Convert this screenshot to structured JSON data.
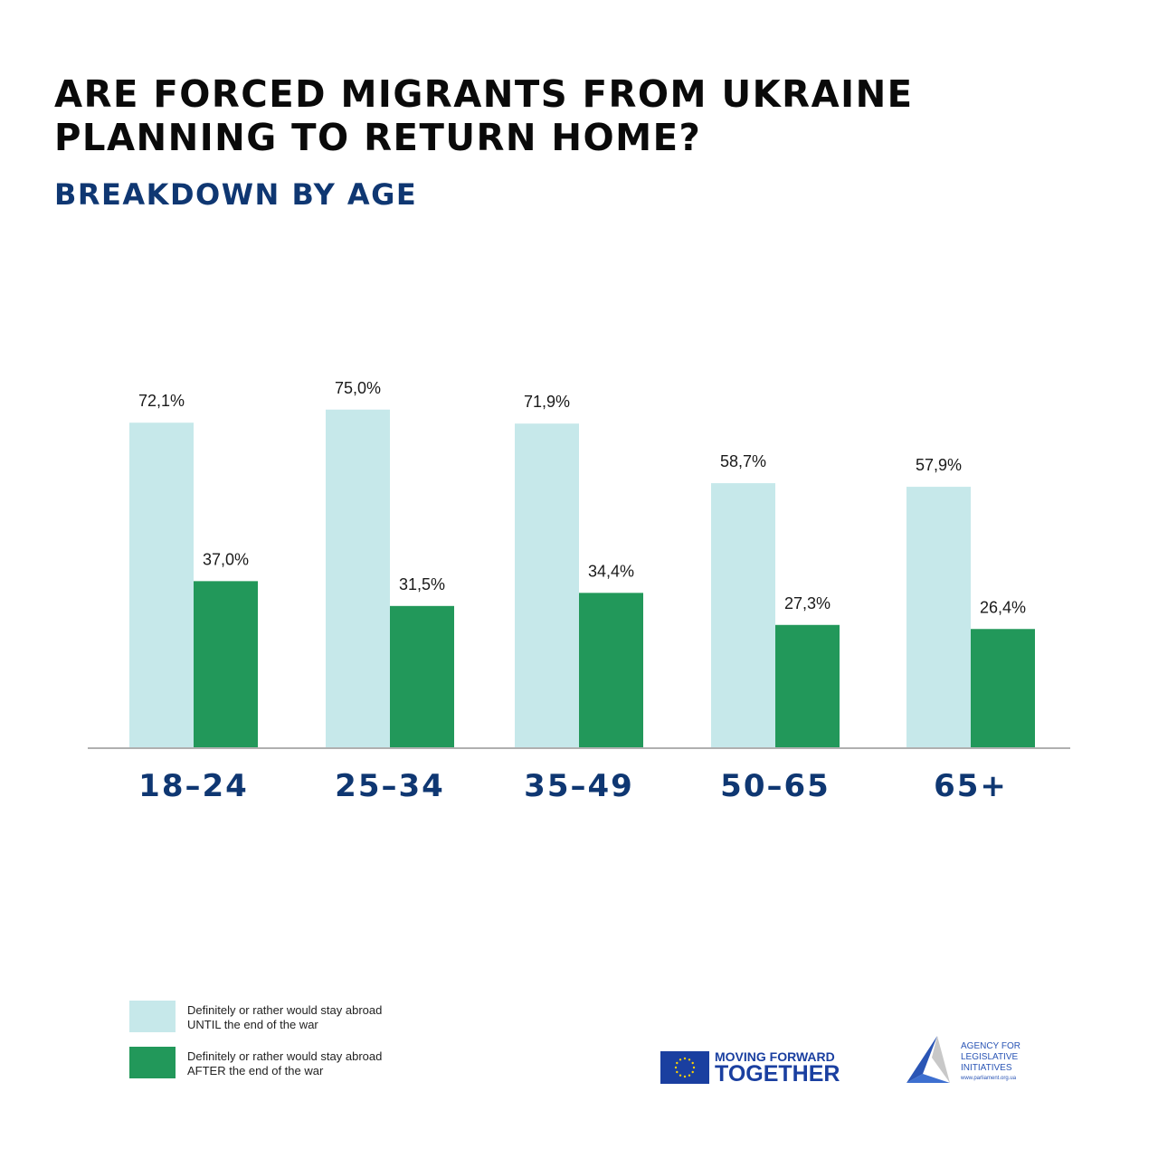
{
  "header": {
    "title_line1": "ARE FORCED MIGRANTS FROM UKRAINE",
    "title_line2": "PLANNING TO RETURN HOME?",
    "subtitle": "BREAKDOWN BY AGE"
  },
  "colors": {
    "until_war_end": "#c6e8ea",
    "after_war_end": "#22985a",
    "title": "#0a0a0a",
    "accent_navy": "#0f3772",
    "axis": "#b0b0b0"
  },
  "chart_data": {
    "type": "bar",
    "title": "ARE FORCED MIGRANTS FROM UKRAINE PLANNING TO RETURN HOME?",
    "subtitle": "BREAKDOWN BY AGE",
    "xlabel": "",
    "ylabel": "",
    "categories": [
      "18–24",
      "25–34",
      "35–49",
      "50–65",
      "65+"
    ],
    "series": [
      {
        "name": "Definitely or rather would stay abroad UNTIL the end of the war",
        "values": [
          72.1,
          75.0,
          71.9,
          58.7,
          57.9
        ],
        "labels": [
          "72,1%",
          "75,0%",
          "71,9%",
          "58,7%",
          "57,9%"
        ]
      },
      {
        "name": "Definitely or rather would stay abroad AFTER the end of the war",
        "values": [
          37.0,
          31.5,
          34.4,
          27.3,
          26.4
        ],
        "labels": [
          "37,0%",
          "31,5%",
          "34,4%",
          "27,3%",
          "26,4%"
        ]
      }
    ],
    "ylim": [
      0,
      100
    ],
    "grid": false,
    "legend_position": "bottom-left"
  },
  "legend": {
    "items": [
      {
        "line1": "Definitely or rather would stay abroad",
        "line2": "UNTIL the end of the war"
      },
      {
        "line1": "Definitely or rather would stay abroad",
        "line2": "AFTER the end of the war"
      }
    ]
  },
  "footer": {
    "eu_line1": "MOVING FORWARD",
    "eu_line2": "TOGETHER",
    "ali_line1": "AGENCY FOR",
    "ali_line2": "LEGISLATIVE",
    "ali_line3": "INITIATIVES",
    "ali_url": "www.parliament.org.ua"
  }
}
